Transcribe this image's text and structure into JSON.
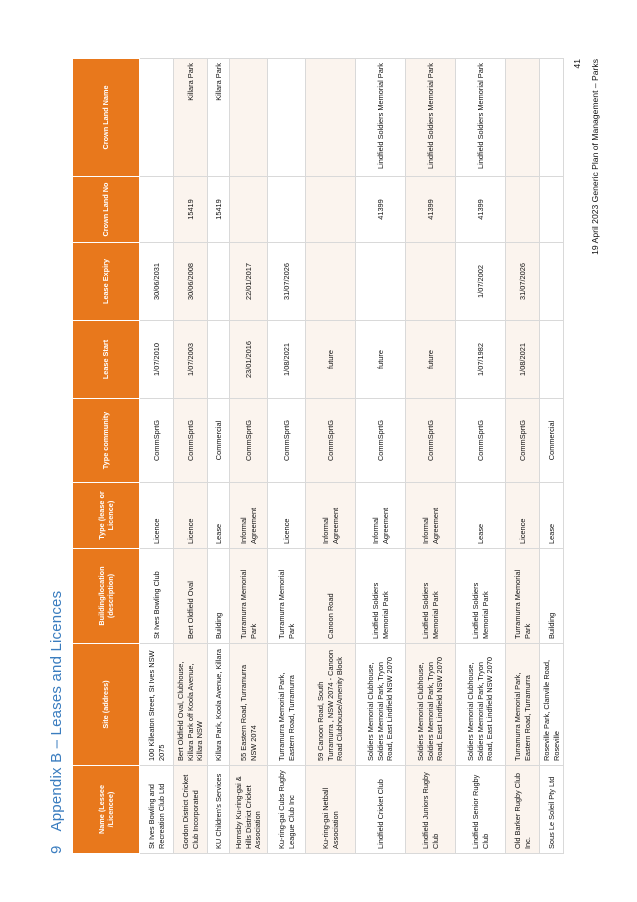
{
  "section": {
    "number": "9",
    "title": "Appendix B – Leases and Licences"
  },
  "table": {
    "headers": [
      "Name (Lessee /Licencee)",
      "Site (address)",
      "Building/location (description)",
      "Type (lease or Licence)",
      "Type community",
      "Lease Start",
      "Lease Expiry",
      "Crown Land No",
      "Crown Land Name"
    ],
    "rows": [
      [
        "St Ives Bowling and Recreation Club Ltd",
        "100 Killeaton Street, St Ives NSW 2075",
        "St Ives Bowling Club",
        "Licence",
        "CommSprtG",
        "1/07/2010",
        "30/06/2031",
        "",
        ""
      ],
      [
        "Gordon District Cricket Club Incorporated",
        "Bert Oldfield Oval, Clubhouse, Killara Park off Koola Avenue, Killara NSW",
        "Bert Oldfield Oval",
        "Licence",
        "CommSprtG",
        "1/07/2003",
        "30/06/2008",
        "15419",
        "Killara Park"
      ],
      [
        "KU Children's Services",
        "Killara Park, Koola Avenue, Killara",
        "Building",
        "Lease",
        "Commercial",
        "",
        "",
        "15419",
        "Killara Park"
      ],
      [
        "Hornsby Ku-ring-gai & Hills District Cricket Association",
        "55 Eastern Road, Turramurra NSW 2074",
        "Turramurra Memorial Park",
        "Informal Agreement",
        "CommSprtG",
        "23/01/2016",
        "22/01/2017",
        "",
        ""
      ],
      [
        "Ku-ring-gai Cubs Rugby League Club Inc",
        "Turramurra Memorial Park, Eastern Road, Turramurra",
        "Turramurra Memorial Park",
        "Licence",
        "CommSprtG",
        "1/08/2021",
        "31/07/2026",
        "",
        ""
      ],
      [
        "Ku-ring-gai Netball Association",
        "59 Canoon Road, South Turramurra , NSW 2074 - Canoon Road Clubhouse/Amenity Block",
        "Canoon Road",
        "Informal Agreement",
        "CommSprtG",
        "future",
        "",
        "",
        ""
      ],
      [
        "Lindfield Cricket Club",
        "Soldiers Memorial Clubhouse, Soldiers Memorial Park, Tryon Road, East Lindfield NSW 2070",
        "Lindfield Soldiers Memorial Park",
        "Informal Agreement",
        "CommSprtG",
        "future",
        "",
        "41399",
        "Lindfield Soldiers Memorial Park"
      ],
      [
        "Lindfield Juniors Rugby Club",
        "Soldiers Memorial Clubhouse, Soldiers Memorial Park, Tryon Road, East Lindfield NSW 2070",
        "Lindfield Soldiers Memorial Park",
        "Informal Agreement",
        "CommSprtG",
        "future",
        "",
        "41399",
        "Lindfield Soldiers Memorial Park"
      ],
      [
        "Lindfield Senior Rugby Club",
        "Soldiers Memorial Clubhouse, Soldiers Memorial Park, Tryon Road, East Lindfield NSW 2070",
        "Lindfield Soldiers Memorial Park",
        "Lease",
        "CommSprtG",
        "1/07/1982",
        "1/07/2002",
        "41399",
        "Lindfield Soldiers Memorial Park"
      ],
      [
        "Old Barker Rugby Club Inc.",
        "Turramurra Memorial Park, Eastern Road, Turramurra",
        "Turramurra Memorial Park",
        "Licence",
        "CommSprtG",
        "1/08/2021",
        "31/07/2026",
        "",
        ""
      ],
      [
        "Sous Le Soleil Pty Ltd",
        "Roseville Park, Clanville Road, Roseville",
        "Building",
        "Lease",
        "Commercial",
        "",
        "",
        "",
        ""
      ]
    ]
  },
  "footer": {
    "page_number": "41",
    "text": "19 April 2023   Generic Plan of Management – Parks"
  },
  "colors": {
    "header_bg": "#e8781c",
    "heading_text": "#3b7dbf"
  }
}
